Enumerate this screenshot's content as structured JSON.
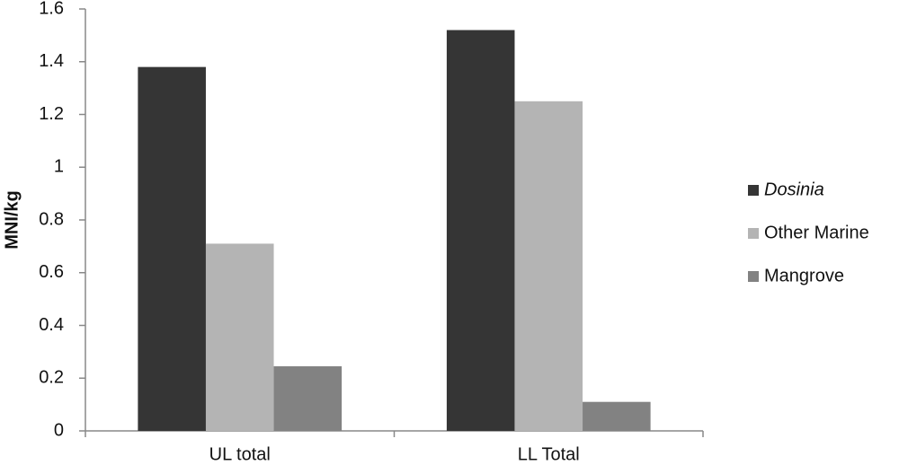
{
  "chart_data": {
    "type": "bar",
    "y_label": "MNI/kg",
    "categories": [
      "UL total",
      "LL Total"
    ],
    "series": [
      {
        "name": "Dosinia",
        "color": "#353535",
        "values": [
          1.38,
          1.52
        ]
      },
      {
        "name": "Other Marine",
        "color": "#b4b4b4",
        "values": [
          0.71,
          1.25
        ]
      },
      {
        "name": "Mangrove",
        "color": "#828282",
        "values": [
          0.245,
          0.11
        ]
      }
    ],
    "ylim": [
      0,
      1.6
    ],
    "yticks": [
      0,
      0.2,
      0.4,
      0.6,
      0.8,
      1,
      1.2,
      1.4,
      1.6
    ],
    "grid": false,
    "legend": "right"
  }
}
